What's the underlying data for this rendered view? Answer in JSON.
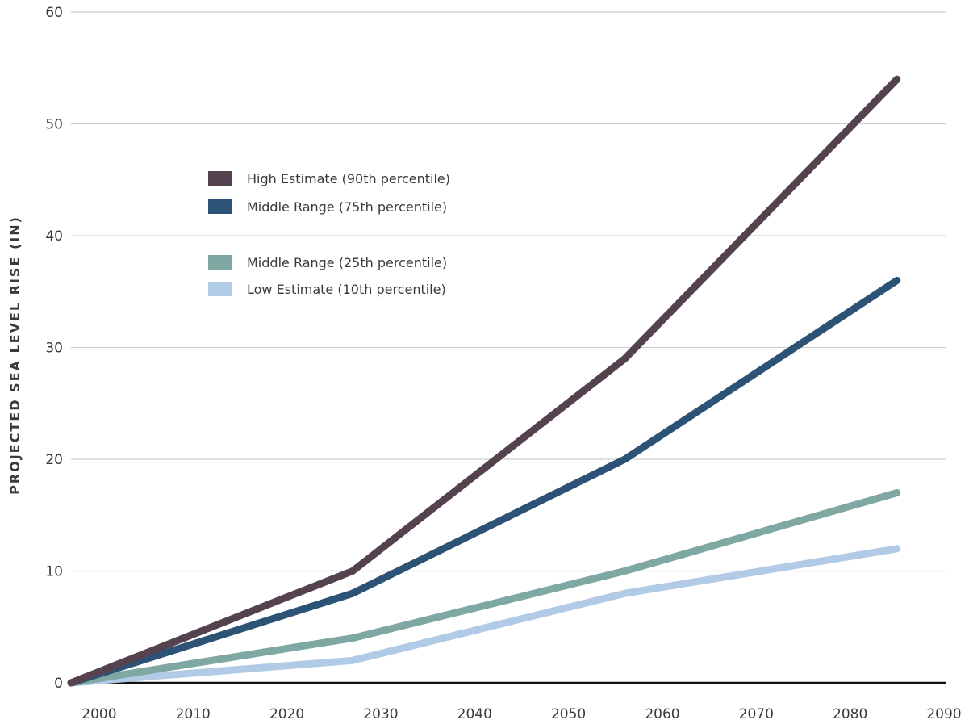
{
  "chart_data": {
    "type": "line",
    "title": "",
    "xlabel": "",
    "ylabel": "PROJECTED SEA LEVEL RISE (IN)",
    "xlim": [
      1997,
      2090
    ],
    "ylim": [
      0,
      60
    ],
    "x_ticks": [
      "2000",
      "2010",
      "2020",
      "2030",
      "2040",
      "2050",
      "2060",
      "2070",
      "2080",
      "2090"
    ],
    "y_ticks": [
      "0",
      "10",
      "20",
      "30",
      "40",
      "50",
      "60"
    ],
    "grid": true,
    "legend_position": "upper-left",
    "series": [
      {
        "name": "High Estimate (90th percentile)",
        "color": "#54424f",
        "x": [
          1997,
          2027,
          2056,
          2085
        ],
        "y": [
          0,
          10,
          29,
          54
        ]
      },
      {
        "name": "Middle Range (75th percentile)",
        "color": "#2c5276",
        "x": [
          1997,
          2027,
          2056,
          2085
        ],
        "y": [
          0,
          8,
          20,
          36
        ]
      },
      {
        "name": "Middle Range (25th percentile)",
        "color": "#7fa8a2",
        "x": [
          1997,
          2027,
          2056,
          2085
        ],
        "y": [
          0,
          4,
          10,
          17
        ]
      },
      {
        "name": "Low Estimate (10th percentile)",
        "color": "#b1cbe6",
        "x": [
          1997,
          2027,
          2056,
          2085
        ],
        "y": [
          0,
          2,
          8,
          12
        ]
      }
    ]
  }
}
